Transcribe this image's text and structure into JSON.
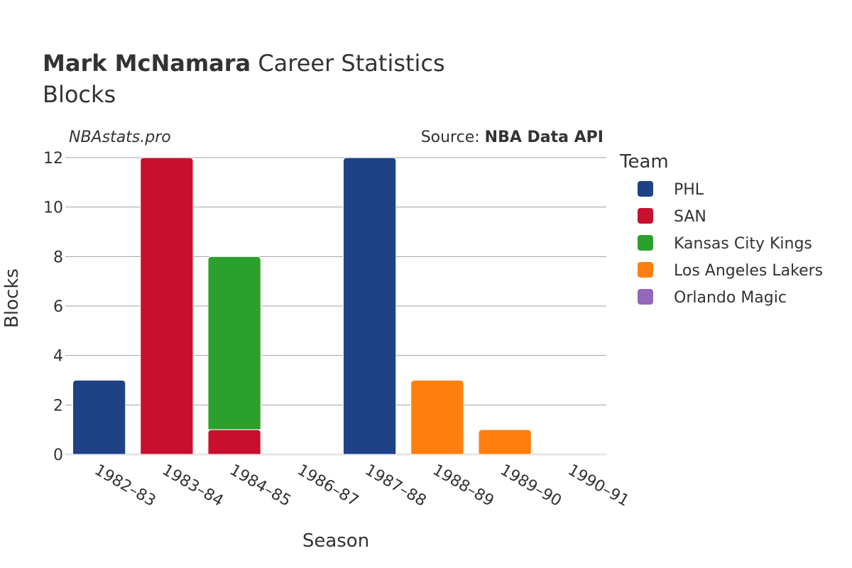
{
  "title": {
    "bold": "Mark McNamara",
    "rest": " Career Statistics",
    "subtitle": "Blocks"
  },
  "credits": {
    "site": "NBAstats.pro",
    "source_prefix": "Source: ",
    "source_bold": "NBA Data API"
  },
  "legend": {
    "title": "Team",
    "items": [
      {
        "name": "PHL",
        "color": "#1f4287"
      },
      {
        "name": "SAN",
        "color": "#c8102e"
      },
      {
        "name": "Kansas City Kings",
        "color": "#2ca02c"
      },
      {
        "name": "Los Angeles Lakers",
        "color": "#ff7f0e"
      },
      {
        "name": "Orlando Magic",
        "color": "#9467bd"
      }
    ]
  },
  "chart_data": {
    "type": "bar",
    "stacked": true,
    "xlabel": "Season",
    "ylabel": "Blocks",
    "ylim": [
      0,
      12
    ],
    "yticks": [
      0,
      2,
      4,
      6,
      8,
      10,
      12
    ],
    "grid": true,
    "legend_position": "right",
    "categories": [
      "1982–83",
      "1983–84",
      "1984–85",
      "1986–87",
      "1987–88",
      "1988–89",
      "1989–90",
      "1990–91"
    ],
    "series": [
      {
        "name": "PHL",
        "color": "#1f4287",
        "values": [
          3,
          0,
          0,
          0,
          12,
          0,
          0,
          0
        ]
      },
      {
        "name": "SAN",
        "color": "#c8102e",
        "values": [
          0,
          12,
          1,
          0,
          0,
          0,
          0,
          0
        ]
      },
      {
        "name": "Kansas City Kings",
        "color": "#2ca02c",
        "values": [
          0,
          0,
          7,
          0,
          0,
          0,
          0,
          0
        ]
      },
      {
        "name": "Los Angeles Lakers",
        "color": "#ff7f0e",
        "values": [
          0,
          0,
          0,
          0,
          0,
          3,
          1,
          0
        ]
      },
      {
        "name": "Orlando Magic",
        "color": "#9467bd",
        "values": [
          0,
          0,
          0,
          0,
          0,
          0,
          0,
          0
        ]
      }
    ]
  }
}
